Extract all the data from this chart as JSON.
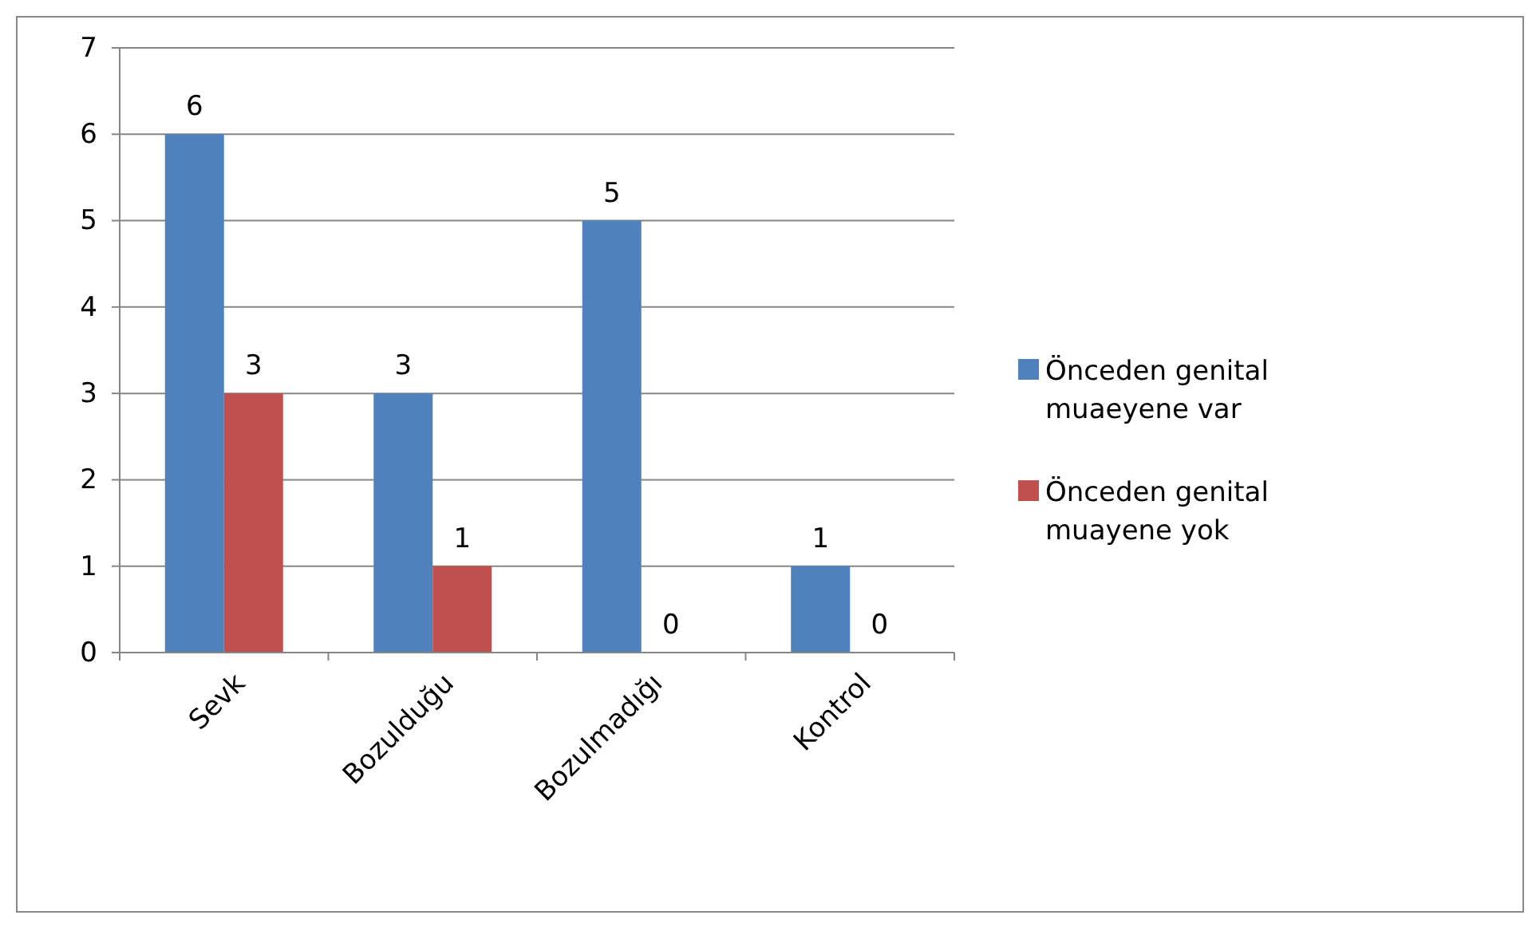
{
  "chart_data": {
    "type": "bar",
    "categories": [
      "Sevk",
      "Bozulduğu",
      "Bozulmadığı",
      "Kontrol"
    ],
    "series": [
      {
        "name": "Önceden genital muaeyene var",
        "color": "#4f81bd",
        "values": [
          6,
          3,
          5,
          1
        ]
      },
      {
        "name": "Önceden genital muayene yok",
        "color": "#c0504d",
        "values": [
          3,
          1,
          0,
          0
        ]
      }
    ],
    "ylim": [
      0,
      7
    ],
    "yticks": [
      0,
      1,
      2,
      3,
      4,
      5,
      6,
      7
    ],
    "grid": "y",
    "legend": "right",
    "data_labels": true
  }
}
